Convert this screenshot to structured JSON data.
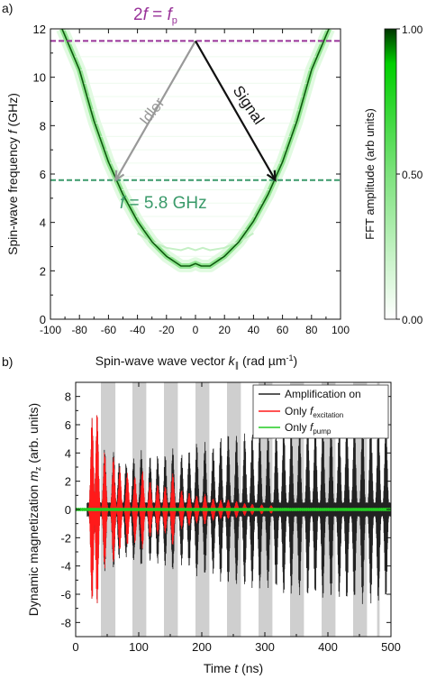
{
  "chart_data": [
    {
      "panel": "a)",
      "type": "heatmap",
      "xlabel": "Spin-wave wave vector k∥ (rad µm⁻¹)",
      "xlabel_parts": {
        "main": "Spin-wave wave vector ",
        "var": "k",
        "sub": "∥",
        "unit_pre": " (rad µm",
        "unit_sup": "-1",
        "unit_post": ")"
      },
      "ylabel": "Spin-wave frequency f (GHz)",
      "ylabel_parts": {
        "main": "Spin-wave frequency ",
        "var": "f",
        "unit": " (GHz)"
      },
      "xlim": [
        -100,
        100
      ],
      "ylim": [
        0,
        12
      ],
      "xticks": [
        -100,
        -80,
        -60,
        -40,
        -20,
        0,
        20,
        40,
        60,
        80,
        100
      ],
      "yticks": [
        0,
        2,
        4,
        6,
        8,
        10,
        12
      ],
      "colorbar": {
        "label": "FFT amplitude (arb units)",
        "min": 0.0,
        "max": 1.0,
        "ticks": [
          "0.00",
          "0.50",
          "1.00"
        ],
        "color_low": "#ffffff",
        "color_high": "#00e000",
        "color_max": "#003300"
      },
      "dispersion": {
        "k": [
          -92,
          -80,
          -70,
          -60,
          -50,
          -40,
          -30,
          -20,
          -10,
          -4,
          0,
          4,
          10,
          20,
          30,
          40,
          50,
          60,
          70,
          80,
          92
        ],
        "f": [
          12.0,
          10.3,
          8.2,
          6.5,
          5.15,
          4.05,
          3.2,
          2.6,
          2.2,
          2.2,
          2.3,
          2.2,
          2.2,
          2.6,
          3.2,
          4.05,
          5.15,
          6.5,
          8.2,
          10.3,
          12.0
        ]
      },
      "faint_branch": {
        "k": [
          -40,
          -30,
          -20,
          -10,
          -5,
          0,
          5,
          10,
          20,
          30,
          40
        ],
        "f": [
          3.55,
          3.2,
          2.95,
          2.85,
          2.95,
          2.85,
          2.95,
          2.85,
          2.95,
          3.2,
          3.55
        ]
      },
      "pump_line": {
        "f": 11.5,
        "label_pre": "2",
        "label_var": "f",
        "label_mid": " = ",
        "label_var2": "f",
        "label_sub": "p",
        "color": "#993399"
      },
      "half_line": {
        "f": 5.75,
        "label_var": "f",
        "label_rest": " = 5.8 GHz",
        "color": "#3a9a6a"
      },
      "idler_arrow": {
        "label": "Idler",
        "from": [
          0,
          11.5
        ],
        "to": [
          -55,
          5.75
        ],
        "color": "#999999"
      },
      "signal_arrow": {
        "label": "Signal",
        "from": [
          0,
          11.5
        ],
        "to": [
          55,
          5.75
        ],
        "color": "#111111"
      }
    },
    {
      "panel": "b)",
      "type": "line",
      "xlabel": "Time t (ns)",
      "xlabel_parts": {
        "main": "Time ",
        "var": "t",
        "unit": " (ns)"
      },
      "ylabel": "Dynamic magnetization m₂ (arb. units)",
      "ylabel_parts": {
        "main": "Dynamic magnetization ",
        "var": "m",
        "sub": "z",
        "unit": " (arb. units)"
      },
      "xlim": [
        0,
        500
      ],
      "ylim": [
        -9,
        9
      ],
      "xticks": [
        0,
        100,
        200,
        300,
        400,
        500
      ],
      "yticks": [
        -8,
        -6,
        -4,
        -2,
        0,
        2,
        4,
        6,
        8
      ],
      "legend_position": "top-right",
      "shaded_intervals": [
        [
          40,
          63
        ],
        [
          90,
          112
        ],
        [
          140,
          162
        ],
        [
          190,
          212
        ],
        [
          240,
          262
        ],
        [
          290,
          312
        ],
        [
          340,
          362
        ],
        [
          390,
          412
        ],
        [
          440,
          462
        ],
        [
          478,
          482
        ]
      ],
      "series": [
        {
          "name": "Amplification on",
          "name_parts": {
            "text": "Amplification on"
          },
          "color": "#222222",
          "bursts": [
            {
              "t": 26,
              "amp": 6.6
            },
            {
              "t": 34,
              "amp": 6.9
            },
            {
              "t": 46,
              "amp": 4.4
            },
            {
              "t": 60,
              "amp": 4.2
            },
            {
              "t": 69,
              "amp": 3.5
            },
            {
              "t": 80,
              "amp": 3.4
            },
            {
              "t": 92,
              "amp": 3.7
            },
            {
              "t": 104,
              "amp": 4.2
            },
            {
              "t": 118,
              "amp": 3.8
            },
            {
              "t": 130,
              "amp": 3.9
            },
            {
              "t": 142,
              "amp": 4.0
            },
            {
              "t": 154,
              "amp": 4.4
            },
            {
              "t": 168,
              "amp": 4.0
            },
            {
              "t": 180,
              "amp": 4.2
            },
            {
              "t": 192,
              "amp": 4.8
            },
            {
              "t": 205,
              "amp": 4.8
            },
            {
              "t": 218,
              "amp": 4.6
            },
            {
              "t": 230,
              "amp": 5.2
            },
            {
              "t": 242,
              "amp": 5.4
            },
            {
              "t": 255,
              "amp": 5.4
            },
            {
              "t": 268,
              "amp": 5.5
            },
            {
              "t": 280,
              "amp": 5.6
            },
            {
              "t": 292,
              "amp": 5.7
            },
            {
              "t": 305,
              "amp": 5.6
            },
            {
              "t": 318,
              "amp": 5.8
            },
            {
              "t": 330,
              "amp": 6.1
            },
            {
              "t": 342,
              "amp": 6.0
            },
            {
              "t": 355,
              "amp": 6.2
            },
            {
              "t": 368,
              "amp": 6.3
            },
            {
              "t": 380,
              "amp": 6.2
            },
            {
              "t": 392,
              "amp": 6.4
            },
            {
              "t": 405,
              "amp": 6.4
            },
            {
              "t": 418,
              "amp": 6.3
            },
            {
              "t": 430,
              "amp": 6.6
            },
            {
              "t": 442,
              "amp": 6.5
            },
            {
              "t": 455,
              "amp": 6.8
            },
            {
              "t": 468,
              "amp": 6.7
            },
            {
              "t": 480,
              "amp": 6.6
            },
            {
              "t": 492,
              "amp": 6.5
            }
          ]
        },
        {
          "name": "Only f_excitation",
          "name_parts": {
            "text": "Only ",
            "var": "f",
            "sub": "excitation"
          },
          "color": "#ff1a1a",
          "bursts": [
            {
              "t": 26,
              "amp": 6.6
            },
            {
              "t": 34,
              "amp": 6.9
            },
            {
              "t": 46,
              "amp": 4.2
            },
            {
              "t": 60,
              "amp": 3.8
            },
            {
              "t": 70,
              "amp": 3.0
            },
            {
              "t": 82,
              "amp": 2.6
            },
            {
              "t": 94,
              "amp": 2.4
            },
            {
              "t": 106,
              "amp": 2.8
            },
            {
              "t": 118,
              "amp": 2.0
            },
            {
              "t": 130,
              "amp": 1.8
            },
            {
              "t": 142,
              "amp": 1.7
            },
            {
              "t": 154,
              "amp": 2.6
            },
            {
              "t": 168,
              "amp": 1.4
            },
            {
              "t": 180,
              "amp": 1.2
            },
            {
              "t": 192,
              "amp": 1.0
            },
            {
              "t": 205,
              "amp": 1.1
            },
            {
              "t": 218,
              "amp": 0.8
            },
            {
              "t": 230,
              "amp": 0.7
            },
            {
              "t": 242,
              "amp": 0.7
            },
            {
              "t": 255,
              "amp": 0.6
            },
            {
              "t": 268,
              "amp": 0.45
            },
            {
              "t": 280,
              "amp": 0.4
            },
            {
              "t": 295,
              "amp": 0.35
            },
            {
              "t": 310,
              "amp": 0.3
            }
          ]
        },
        {
          "name": "Only f_pump",
          "name_parts": {
            "text": "Only ",
            "var": "f",
            "sub": "pump"
          },
          "color": "#22cc22",
          "amplitude": 0.12
        }
      ]
    }
  ]
}
